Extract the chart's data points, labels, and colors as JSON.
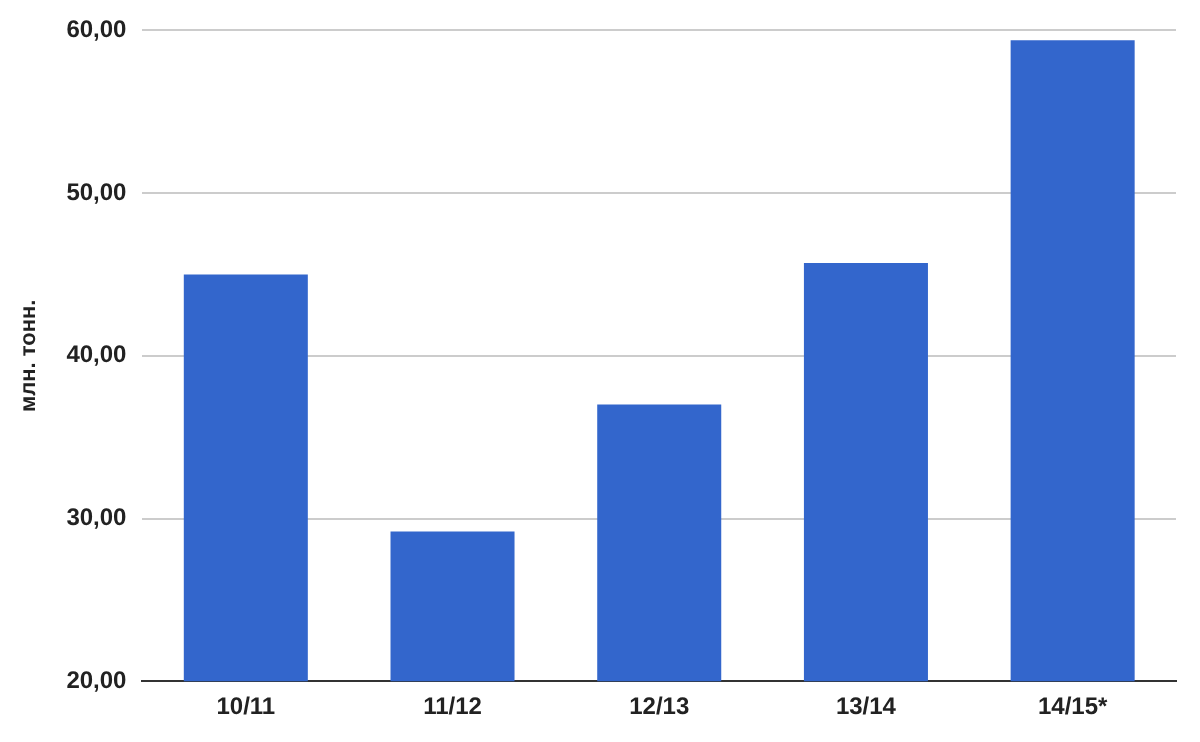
{
  "chart_data": {
    "type": "bar",
    "ylabel": "млн. тонн.",
    "categories": [
      "10/11",
      "11/12",
      "12/13",
      "13/14",
      "14/15*"
    ],
    "values": [
      45.0,
      29.2,
      37.0,
      45.7,
      59.4
    ],
    "color": "#3366cc",
    "ylim": [
      20,
      60
    ],
    "yticks": [
      {
        "value": 20,
        "label": "20,00"
      },
      {
        "value": 30,
        "label": "30,00"
      },
      {
        "value": 40,
        "label": "40,00"
      },
      {
        "value": 50,
        "label": "50,00"
      },
      {
        "value": 60,
        "label": "60,00"
      }
    ],
    "grid": "y",
    "legend": false
  }
}
